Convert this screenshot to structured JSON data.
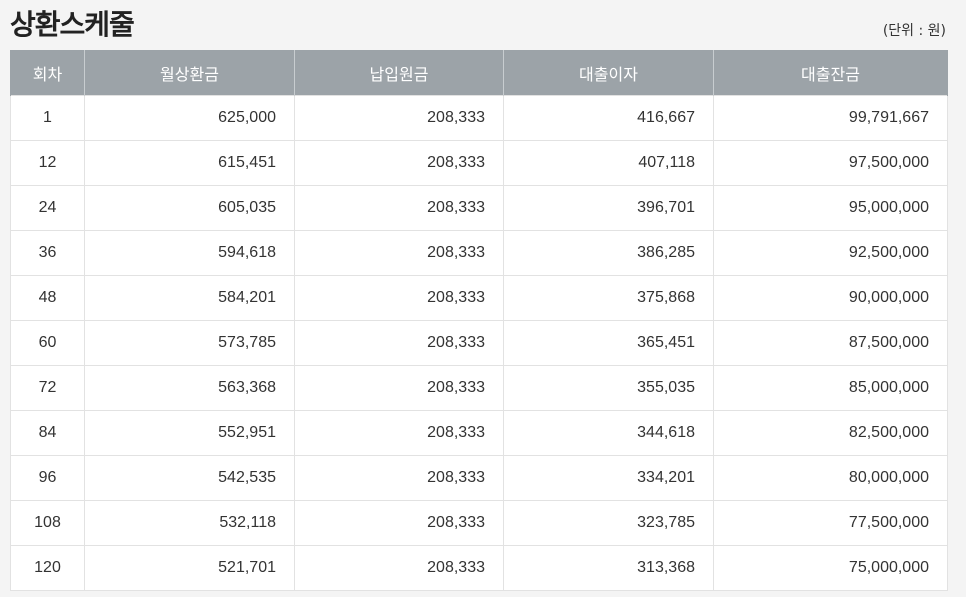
{
  "title": "상환스케줄",
  "unit": "(단위 : 원)",
  "columns": [
    "회차",
    "월상환금",
    "납입원금",
    "대출이자",
    "대출잔금"
  ],
  "rows": [
    [
      "1",
      "625,000",
      "208,333",
      "416,667",
      "99,791,667"
    ],
    [
      "12",
      "615,451",
      "208,333",
      "407,118",
      "97,500,000"
    ],
    [
      "24",
      "605,035",
      "208,333",
      "396,701",
      "95,000,000"
    ],
    [
      "36",
      "594,618",
      "208,333",
      "386,285",
      "92,500,000"
    ],
    [
      "48",
      "584,201",
      "208,333",
      "375,868",
      "90,000,000"
    ],
    [
      "60",
      "573,785",
      "208,333",
      "365,451",
      "87,500,000"
    ],
    [
      "72",
      "563,368",
      "208,333",
      "355,035",
      "85,000,000"
    ],
    [
      "84",
      "552,951",
      "208,333",
      "344,618",
      "82,500,000"
    ],
    [
      "96",
      "542,535",
      "208,333",
      "334,201",
      "80,000,000"
    ],
    [
      "108",
      "532,118",
      "208,333",
      "323,785",
      "77,500,000"
    ],
    [
      "120",
      "521,701",
      "208,333",
      "313,368",
      "75,000,000"
    ]
  ],
  "colors": {
    "header_bg": "#9ca3a8",
    "header_text": "#ffffff",
    "border": "#e2e2e2"
  }
}
